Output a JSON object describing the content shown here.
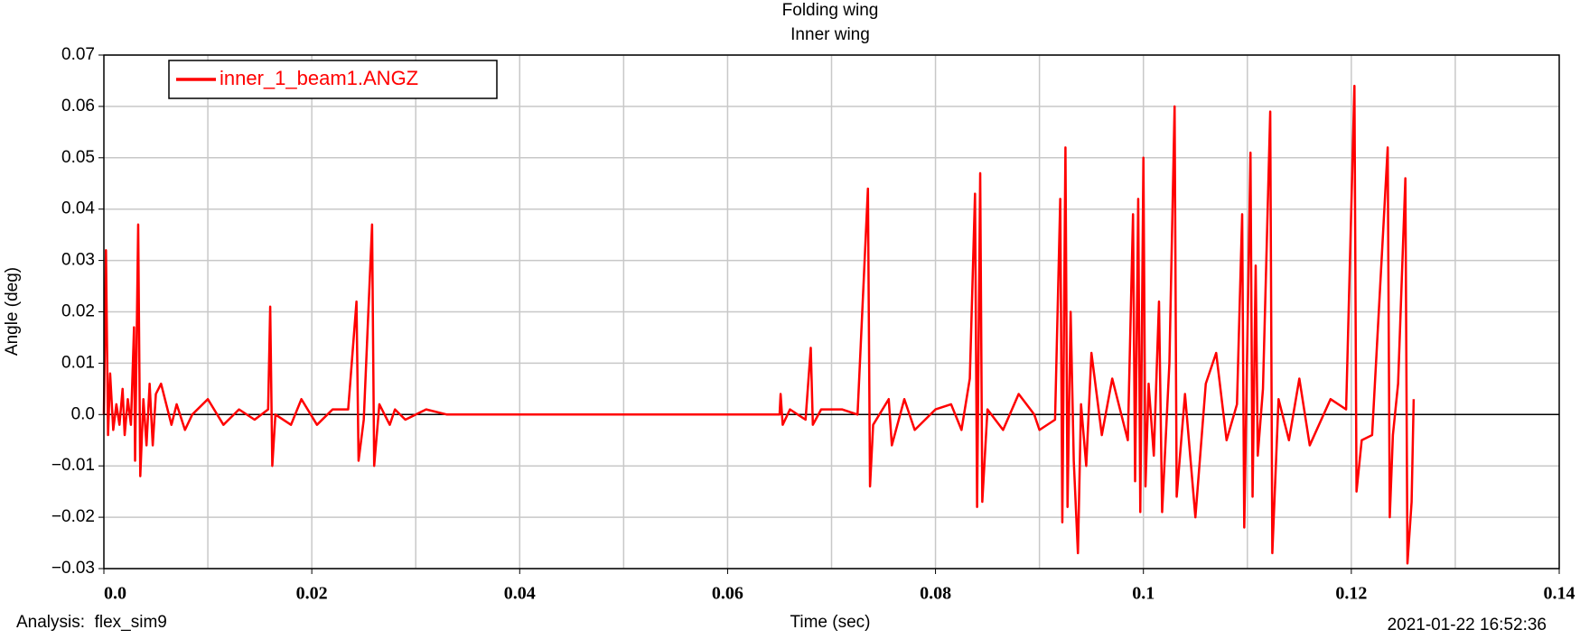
{
  "chart_data": {
    "type": "line",
    "title": "Folding wing",
    "subtitle": "Inner wing",
    "xlabel": "Time (sec)",
    "ylabel": "Angle (deg)",
    "footer_left": "Analysis:  flex_sim9",
    "footer_right": "2021-01-22 16:52:36",
    "xlim": [
      0,
      0.14
    ],
    "ylim": [
      -0.03,
      0.07
    ],
    "xticks": [
      {
        "value": 0,
        "label": "0.0"
      },
      0.02,
      0.04,
      0.06,
      0.08,
      0.1,
      0.12,
      0.14
    ],
    "yticks": [
      {
        "value": -0.03,
        "label": "−0.03"
      },
      {
        "value": -0.02,
        "label": "−0.02"
      },
      {
        "value": -0.01,
        "label": "−0.01"
      },
      {
        "value": 0,
        "label": "0.0"
      },
      0.01,
      0.02,
      0.03,
      0.04,
      0.05,
      0.06,
      0.07
    ],
    "xgrid": [
      0.01,
      0.02,
      0.03,
      0.04,
      0.05,
      0.06,
      0.07,
      0.08,
      0.09,
      0.1,
      0.11,
      0.12,
      0.13
    ],
    "grid": true,
    "legend": "upper left",
    "x": [
      0,
      0.0002,
      0.0004,
      0.0006,
      0.0009,
      0.0012,
      0.0015,
      0.0018,
      0.002,
      0.0023,
      0.0026,
      0.0029,
      0.003,
      0.0033,
      0.0035,
      0.0038,
      0.0041,
      0.0044,
      0.0047,
      0.005,
      0.0055,
      0.006,
      0.0065,
      0.007,
      0.0078,
      0.0085,
      0.01,
      0.0115,
      0.013,
      0.0145,
      0.0158,
      0.016,
      0.0162,
      0.0165,
      0.018,
      0.019,
      0.0205,
      0.022,
      0.0235,
      0.0243,
      0.0245,
      0.025,
      0.0258,
      0.026,
      0.0265,
      0.0275,
      0.028,
      0.029,
      0.031,
      0.033,
      0.065,
      0.0651,
      0.0653,
      0.066,
      0.0675,
      0.068,
      0.0682,
      0.069,
      0.071,
      0.0725,
      0.0735,
      0.0737,
      0.074,
      0.0755,
      0.0758,
      0.077,
      0.078,
      0.08,
      0.0815,
      0.0825,
      0.0833,
      0.0838,
      0.084,
      0.0843,
      0.0845,
      0.085,
      0.0865,
      0.088,
      0.0895,
      0.09,
      0.0915,
      0.092,
      0.0922,
      0.0925,
      0.0927,
      0.093,
      0.0933,
      0.0937,
      0.094,
      0.0945,
      0.095,
      0.096,
      0.097,
      0.0985,
      0.099,
      0.0992,
      0.0995,
      0.0997,
      0.1,
      0.1002,
      0.1005,
      0.101,
      0.1015,
      0.1018,
      0.1025,
      0.103,
      0.1032,
      0.104,
      0.105,
      0.106,
      0.107,
      0.108,
      0.109,
      0.1095,
      0.1097,
      0.1103,
      0.1105,
      0.1108,
      0.111,
      0.1115,
      0.1122,
      0.1124,
      0.113,
      0.114,
      0.115,
      0.116,
      0.118,
      0.1195,
      0.1203,
      0.1205,
      0.121,
      0.122,
      0.1235,
      0.1237,
      0.124,
      0.1245,
      0.1252,
      0.1254,
      0.1258,
      0.126
    ],
    "series": [
      {
        "name": "inner_1_beam1.ANGZ",
        "color": "#ff0000",
        "values": [
          0,
          0.032,
          -0.004,
          0.008,
          -0.003,
          0.002,
          -0.002,
          0.005,
          -0.004,
          0.003,
          -0.002,
          0.017,
          -0.009,
          0.037,
          -0.012,
          0.003,
          -0.006,
          0.006,
          -0.006,
          0.004,
          0.006,
          0.002,
          -0.002,
          0.002,
          -0.003,
          0,
          0.003,
          -0.002,
          0.001,
          -0.001,
          0.001,
          0.021,
          -0.01,
          0,
          -0.002,
          0.003,
          -0.002,
          0.001,
          0.001,
          0.022,
          -0.009,
          -0.001,
          0.037,
          -0.01,
          0.002,
          -0.002,
          0.001,
          -0.001,
          0.001,
          0,
          0,
          0.004,
          -0.002,
          0.001,
          -0.001,
          0.013,
          -0.002,
          0.001,
          0.001,
          0,
          0.044,
          -0.014,
          -0.002,
          0.003,
          -0.006,
          0.003,
          -0.003,
          0.001,
          0.002,
          -0.003,
          0.007,
          0.043,
          -0.018,
          0.047,
          -0.017,
          0.001,
          -0.003,
          0.004,
          0,
          -0.003,
          -0.001,
          0.042,
          -0.021,
          0.052,
          -0.018,
          0.02,
          -0.009,
          -0.027,
          0.002,
          -0.01,
          0.012,
          -0.004,
          0.007,
          -0.005,
          0.039,
          -0.013,
          0.042,
          -0.019,
          0.05,
          -0.014,
          0.006,
          -0.008,
          0.022,
          -0.019,
          0.01,
          0.06,
          -0.016,
          0.004,
          -0.02,
          0.006,
          0.012,
          -0.005,
          0.002,
          0.039,
          -0.022,
          0.051,
          -0.016,
          0.029,
          -0.008,
          0.005,
          0.059,
          -0.027,
          0.003,
          -0.005,
          0.007,
          -0.006,
          0.003,
          0.001,
          0.064,
          -0.015,
          -0.005,
          -0.004,
          0.052,
          -0.02,
          -0.004,
          0.006,
          0.046,
          -0.029,
          -0.017,
          0.003
        ]
      }
    ]
  }
}
